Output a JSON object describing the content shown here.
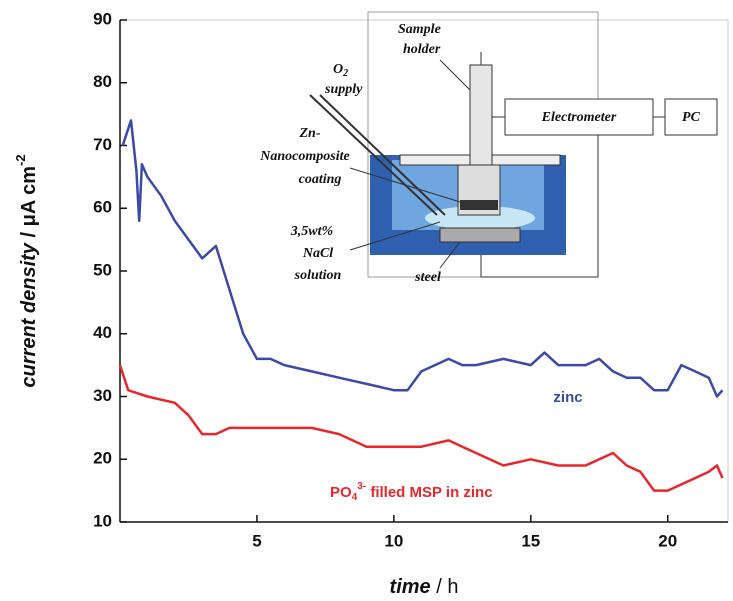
{
  "chart_data": {
    "type": "line",
    "x_label": {
      "italic": "time",
      "unit": " / h"
    },
    "y_label": {
      "italic": "current density",
      "unit": " / μA cm",
      "sup": "-2"
    },
    "xlim": [
      0,
      22.2
    ],
    "xticks": [
      5,
      10,
      15,
      20
    ],
    "ylim": [
      10,
      90
    ],
    "yticks": [
      10,
      20,
      30,
      40,
      50,
      60,
      70,
      80,
      90
    ],
    "grid": false,
    "series": [
      {
        "name": "zinc",
        "color": "#3a4aa6",
        "x": [
          0.1,
          0.4,
          0.6,
          0.7,
          0.8,
          1,
          1.5,
          2,
          2.5,
          3,
          3.5,
          4,
          4.5,
          5,
          5.5,
          6,
          7,
          8,
          9,
          10,
          10.5,
          11,
          11.5,
          12,
          12.5,
          13,
          14,
          15,
          15.5,
          16,
          17,
          17.5,
          18,
          18.5,
          19,
          19.5,
          20,
          20.5,
          21,
          21.5,
          21.8,
          22
        ],
        "values": [
          70,
          74,
          66,
          58,
          67,
          65,
          62,
          58,
          55,
          52,
          54,
          47,
          40,
          36,
          36,
          35,
          34,
          33,
          32,
          31,
          31,
          34,
          35,
          36,
          35,
          35,
          36,
          35,
          37,
          35,
          35,
          36,
          34,
          33,
          33,
          31,
          31,
          35,
          34,
          33,
          30,
          31
        ]
      },
      {
        "name": [
          "PO",
          "4",
          "3-",
          " filled MSP in zinc"
        ],
        "color": "#e8262b",
        "x": [
          0,
          0.3,
          1,
          2,
          2.5,
          3,
          3.5,
          4,
          5,
          6,
          7,
          8,
          9,
          10,
          11,
          12,
          12.5,
          13,
          14,
          15,
          16,
          17,
          18,
          18.5,
          19,
          19.5,
          20,
          20.5,
          21,
          21.5,
          21.8,
          22
        ],
        "values": [
          35,
          31,
          30,
          29,
          27,
          24,
          24,
          25,
          25,
          25,
          25,
          24,
          22,
          22,
          22,
          23,
          22,
          21,
          19,
          20,
          19,
          19,
          21,
          19,
          18,
          15,
          15,
          16,
          17,
          18,
          19,
          17
        ]
      }
    ],
    "inset": {
      "o2": {
        "base": "O",
        "sub": "2"
      },
      "supply": "supply",
      "sample_holder": [
        "Sample",
        "holder"
      ],
      "electrometer": "Electrometer",
      "pc": "PC",
      "coating": [
        "Zn-",
        "Nanocomposite",
        "coating"
      ],
      "solution": [
        "3,5wt%",
        "NaCl",
        "solution"
      ],
      "steel": "steel"
    }
  }
}
